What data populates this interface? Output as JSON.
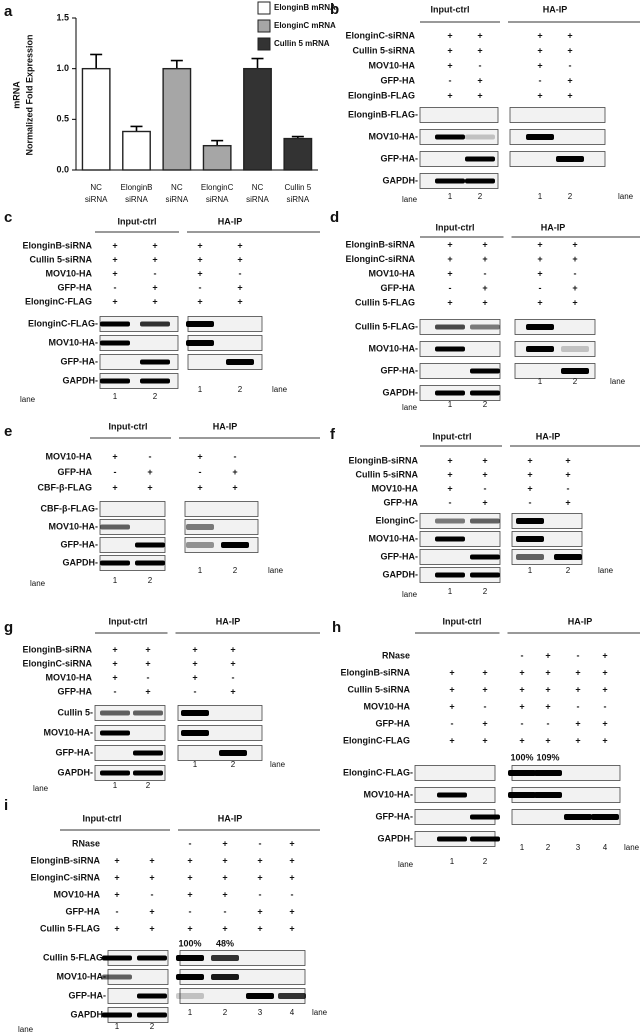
{
  "chart_data": {
    "type": "bar",
    "panel_label": "a",
    "y_label": [
      "mRNA",
      "Normalized Fold Expression"
    ],
    "categories": [
      "NC",
      "ElonginB",
      "NC",
      "ElonginC",
      "NC",
      "Cullin 5"
    ],
    "category_sublabels": [
      "siRNA",
      "siRNA",
      "siRNA",
      "siRNA",
      "siRNA",
      "siRNA"
    ],
    "series": [
      {
        "name": "ElonginB mRNA",
        "color": "#ffffff",
        "values": [
          1.0,
          0.38,
          null,
          null,
          null,
          null
        ],
        "errors": [
          0.14,
          0.05,
          null,
          null,
          null,
          null
        ]
      },
      {
        "name": "ElonginC mRNA",
        "color": "#a6a6a6",
        "values": [
          null,
          null,
          1.0,
          0.24,
          null,
          null
        ],
        "errors": [
          null,
          null,
          0.08,
          0.05,
          null,
          null
        ]
      },
      {
        "name": "Cullin 5 mRNA",
        "color": "#333333",
        "values": [
          null,
          null,
          null,
          null,
          1.0,
          0.31
        ],
        "errors": [
          null,
          null,
          null,
          null,
          0.1,
          0.02
        ]
      }
    ],
    "ylim": [
      0,
      1.5
    ],
    "yticks": [
      {
        "value": 0,
        "label": "0.0"
      },
      {
        "value": 0.5,
        "label": "0.5"
      },
      {
        "value": 1,
        "label": "1.0"
      },
      {
        "value": 1.5,
        "label": "1.5"
      }
    ]
  },
  "blots": [
    {
      "panel_label": "b",
      "headers": [
        "Input-ctrl",
        "HA-IP"
      ],
      "conditions": [
        {
          "label": "ElonginC-siRNA",
          "input_signs": [
            "+",
            "+"
          ],
          "ip_signs": [
            "+",
            "+"
          ]
        },
        {
          "label": "Cullin 5-siRNA",
          "input_signs": [
            "+",
            "+"
          ],
          "ip_signs": [
            "+",
            "+"
          ]
        },
        {
          "label": "MOV10-HA",
          "input_signs": [
            "+",
            "-"
          ],
          "ip_signs": [
            "+",
            "-"
          ]
        },
        {
          "label": "GFP-HA",
          "input_signs": [
            "-",
            "+"
          ],
          "ip_signs": [
            "-",
            "+"
          ]
        },
        {
          "label": "ElonginB-FLAG",
          "input_signs": [
            "+",
            "+"
          ],
          "ip_signs": [
            "+",
            "+"
          ]
        }
      ],
      "rows": [
        "ElonginB-FLAG-",
        "MOV10-HA-",
        "GFP-HA-",
        "GAPDH-"
      ],
      "input_lanes": [
        "1",
        "2"
      ],
      "ip_lanes": [
        "1",
        "2"
      ],
      "lane_label": "lane"
    },
    {
      "panel_label": "c",
      "headers": [
        "Input-ctrl",
        "HA-IP"
      ],
      "conditions": [
        {
          "label": "ElonginB-siRNA",
          "input_signs": [
            "+",
            "+"
          ],
          "ip_signs": [
            "+",
            "+"
          ]
        },
        {
          "label": "Cullin 5-siRNA",
          "input_signs": [
            "+",
            "+"
          ],
          "ip_signs": [
            "+",
            "+"
          ]
        },
        {
          "label": "MOV10-HA",
          "input_signs": [
            "+",
            "-"
          ],
          "ip_signs": [
            "+",
            "-"
          ]
        },
        {
          "label": "GFP-HA",
          "input_signs": [
            "-",
            "+"
          ],
          "ip_signs": [
            "-",
            "+"
          ]
        },
        {
          "label": "ElonginC-FLAG",
          "input_signs": [
            "+",
            "+"
          ],
          "ip_signs": [
            "+",
            "+"
          ]
        }
      ],
      "rows": [
        "ElonginC-FLAG-",
        "MOV10-HA-",
        "GFP-HA-",
        "GAPDH-"
      ],
      "input_lanes": [
        "1",
        "2"
      ],
      "ip_lanes": [
        "1",
        "2"
      ],
      "lane_label": "lane"
    },
    {
      "panel_label": "d",
      "headers": [
        "Input-ctrl",
        "HA-IP"
      ],
      "conditions": [
        {
          "label": "ElonginB-siRNA",
          "input_signs": [
            "+",
            "+"
          ],
          "ip_signs": [
            "+",
            "+"
          ]
        },
        {
          "label": "ElonginC-siRNA",
          "input_signs": [
            "+",
            "+"
          ],
          "ip_signs": [
            "+",
            "+"
          ]
        },
        {
          "label": "MOV10-HA",
          "input_signs": [
            "+",
            "-"
          ],
          "ip_signs": [
            "+",
            "-"
          ]
        },
        {
          "label": "GFP-HA",
          "input_signs": [
            "-",
            "+"
          ],
          "ip_signs": [
            "-",
            "+"
          ]
        },
        {
          "label": "Cullin 5-FLAG",
          "input_signs": [
            "+",
            "+"
          ],
          "ip_signs": [
            "+",
            "+"
          ]
        }
      ],
      "rows": [
        "Cullin 5-FLAG-",
        "MOV10-HA-",
        "GFP-HA-",
        "GAPDH-"
      ],
      "input_lanes": [
        "1",
        "2"
      ],
      "ip_lanes": [
        "1",
        "2"
      ],
      "lane_label": "lane"
    },
    {
      "panel_label": "e",
      "headers": [
        "Input-ctrl",
        "HA-IP"
      ],
      "conditions": [
        {
          "label": "MOV10-HA",
          "input_signs": [
            "+",
            "-"
          ],
          "ip_signs": [
            "+",
            "-"
          ]
        },
        {
          "label": "GFP-HA",
          "input_signs": [
            "-",
            "+"
          ],
          "ip_signs": [
            "-",
            "+"
          ]
        },
        {
          "label": "CBF-β-FLAG",
          "input_signs": [
            "+",
            "+"
          ],
          "ip_signs": [
            "+",
            "+"
          ]
        }
      ],
      "rows": [
        "CBF-β-FLAG-",
        "MOV10-HA-",
        "GFP-HA-",
        "GAPDH-"
      ],
      "input_lanes": [
        "1",
        "2"
      ],
      "ip_lanes": [
        "1",
        "2"
      ],
      "lane_label": "lane"
    },
    {
      "panel_label": "f",
      "headers": [
        "Input-ctrl",
        "HA-IP"
      ],
      "conditions": [
        {
          "label": "ElonginB-siRNA",
          "input_signs": [
            "+",
            "+"
          ],
          "ip_signs": [
            "+",
            "+"
          ]
        },
        {
          "label": "Cullin 5-siRNA",
          "input_signs": [
            "+",
            "+"
          ],
          "ip_signs": [
            "+",
            "+"
          ]
        },
        {
          "label": "MOV10-HA",
          "input_signs": [
            "+",
            "-"
          ],
          "ip_signs": [
            "+",
            "-"
          ]
        },
        {
          "label": "GFP-HA",
          "input_signs": [
            "-",
            "+"
          ],
          "ip_signs": [
            "-",
            "+"
          ]
        }
      ],
      "rows": [
        "ElonginC-",
        "MOV10-HA-",
        "GFP-HA-",
        "GAPDH-"
      ],
      "input_lanes": [
        "1",
        "2"
      ],
      "ip_lanes": [
        "1",
        "2"
      ],
      "lane_label": "lane"
    },
    {
      "panel_label": "g",
      "headers": [
        "Input-ctrl",
        "HA-IP"
      ],
      "conditions": [
        {
          "label": "ElonginB-siRNA",
          "input_signs": [
            "+",
            "+"
          ],
          "ip_signs": [
            "+",
            "+"
          ]
        },
        {
          "label": "ElonginC-siRNA",
          "input_signs": [
            "+",
            "+"
          ],
          "ip_signs": [
            "+",
            "+"
          ]
        },
        {
          "label": "MOV10-HA",
          "input_signs": [
            "+",
            "-"
          ],
          "ip_signs": [
            "+",
            "-"
          ]
        },
        {
          "label": "GFP-HA",
          "input_signs": [
            "-",
            "+"
          ],
          "ip_signs": [
            "-",
            "+"
          ]
        }
      ],
      "rows": [
        "Cullin 5-",
        "MOV10-HA-",
        "GFP-HA-",
        "GAPDH-"
      ],
      "input_lanes": [
        "1",
        "2"
      ],
      "ip_lanes": [
        "1",
        "2"
      ],
      "lane_label": "lane"
    },
    {
      "panel_label": "h",
      "headers": [
        "Input-ctrl",
        "HA-IP"
      ],
      "conditions": [
        {
          "label": "RNase",
          "ip_signs": [
            "-",
            "+",
            "-",
            "+"
          ]
        },
        {
          "label": "ElonginB-siRNA",
          "input_signs": [
            "+",
            "+"
          ],
          "ip_signs": [
            "+",
            "+",
            "+",
            "+"
          ]
        },
        {
          "label": "Cullin 5-siRNA",
          "input_signs": [
            "+",
            "+"
          ],
          "ip_signs": [
            "+",
            "+",
            "+",
            "+"
          ]
        },
        {
          "label": "MOV10-HA",
          "input_signs": [
            "+",
            "-"
          ],
          "ip_signs": [
            "+",
            "+",
            "-",
            "-"
          ]
        },
        {
          "label": "GFP-HA",
          "input_signs": [
            "-",
            "+"
          ],
          "ip_signs": [
            "-",
            "-",
            "+",
            "+"
          ]
        },
        {
          "label": "ElonginC-FLAG",
          "input_signs": [
            "+",
            "+"
          ],
          "ip_signs": [
            "+",
            "+",
            "+",
            "+"
          ]
        }
      ],
      "percentages": [
        "100%",
        "109%"
      ],
      "rows": [
        "ElonginC-FLAG-",
        "MOV10-HA-",
        "GFP-HA-",
        "GAPDH-"
      ],
      "input_lanes": [
        "1",
        "2"
      ],
      "ip_lanes": [
        "1",
        "2",
        "3",
        "4"
      ],
      "lane_label": "lane"
    },
    {
      "panel_label": "i",
      "headers": [
        "Input-ctrl",
        "HA-IP"
      ],
      "conditions": [
        {
          "label": "RNase",
          "ip_signs": [
            "-",
            "+",
            "-",
            "+"
          ]
        },
        {
          "label": "ElonginB-siRNA",
          "input_signs": [
            "+",
            "+"
          ],
          "ip_signs": [
            "+",
            "+",
            "+",
            "+"
          ]
        },
        {
          "label": "ElonginC-siRNA",
          "input_signs": [
            "+",
            "+"
          ],
          "ip_signs": [
            "+",
            "+",
            "+",
            "+"
          ]
        },
        {
          "label": "MOV10-HA",
          "input_signs": [
            "+",
            "-"
          ],
          "ip_signs": [
            "+",
            "+",
            "-",
            "-"
          ]
        },
        {
          "label": "GFP-HA",
          "input_signs": [
            "-",
            "+"
          ],
          "ip_signs": [
            "-",
            "-",
            "+",
            "+"
          ]
        },
        {
          "label": "Cullin 5-FLAG",
          "input_signs": [
            "+",
            "+"
          ],
          "ip_signs": [
            "+",
            "+",
            "+",
            "+"
          ]
        }
      ],
      "percentages": [
        "100%",
        "48%"
      ],
      "rows": [
        "Cullin 5-FLAG-",
        "MOV10-HA-",
        "GFP-HA-",
        "GAPDH-"
      ],
      "input_lanes": [
        "1",
        "2"
      ],
      "ip_lanes": [
        "1",
        "2",
        "3",
        "4"
      ],
      "lane_label": "lane"
    }
  ]
}
